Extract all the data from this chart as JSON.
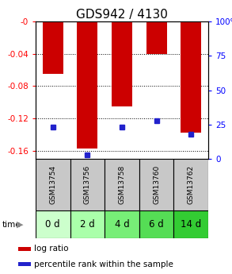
{
  "title": "GDS942 / 4130",
  "samples": [
    "GSM13754",
    "GSM13756",
    "GSM13758",
    "GSM13760",
    "GSM13762"
  ],
  "time_labels": [
    "0 d",
    "2 d",
    "4 d",
    "6 d",
    "14 d"
  ],
  "log_ratios": [
    -0.065,
    -0.157,
    -0.105,
    -0.04,
    -0.138
  ],
  "percentile_ranks": [
    23,
    3,
    23,
    28,
    18
  ],
  "ylim_left": [
    -0.17,
    0.0
  ],
  "left_ticks": [
    -0.0,
    -0.04,
    -0.08,
    -0.12,
    -0.16
  ],
  "left_tick_labels": [
    "-0",
    "-0.04",
    "-0.08",
    "-0.12",
    "-0.16"
  ],
  "right_ticks": [
    0,
    25,
    50,
    75,
    100
  ],
  "right_tick_labels": [
    "0",
    "25",
    "50",
    "75",
    "100%"
  ],
  "bar_color": "#cc0000",
  "dot_color": "#2222cc",
  "title_fontsize": 11,
  "tick_fontsize": 7.5,
  "sample_label_fontsize": 6.5,
  "time_label_fontsize": 8.5,
  "legend_fontsize": 7.5,
  "bg_sample_color": "#c8c8c8",
  "time_colors": [
    "#ccffcc",
    "#aaffaa",
    "#77ee77",
    "#55dd55",
    "#33cc33"
  ],
  "time_arrow_color": "#888888"
}
